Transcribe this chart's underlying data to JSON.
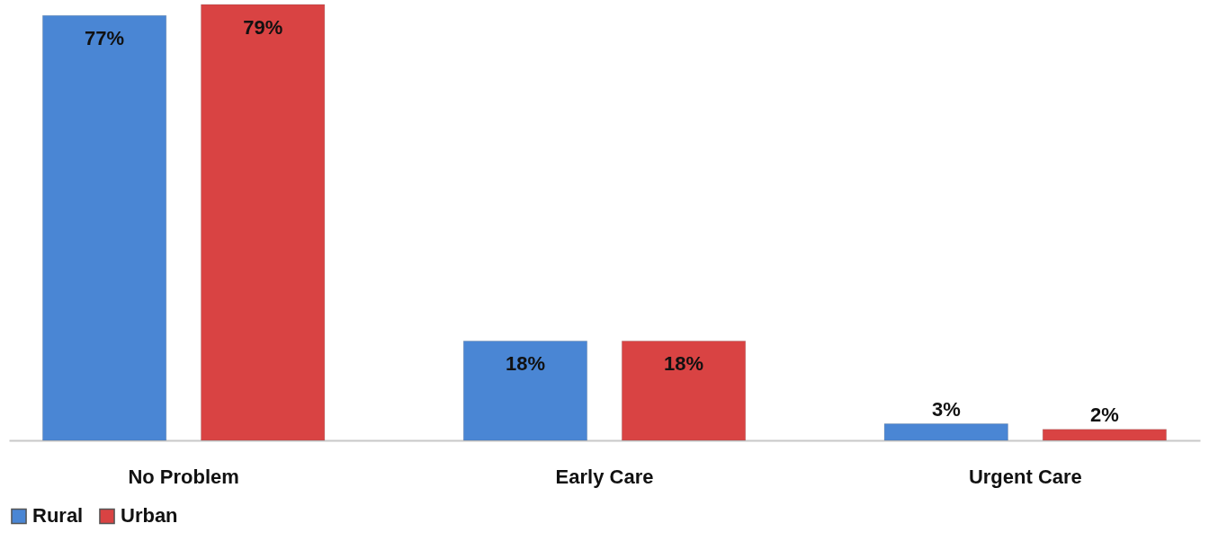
{
  "chart_data": {
    "type": "bar",
    "categories": [
      "No Problem",
      "Early Care",
      "Urgent Care"
    ],
    "series": [
      {
        "name": "Rural",
        "color": "#4a86d4",
        "values": [
          77,
          18,
          3
        ],
        "value_labels": [
          "77%",
          "18%",
          "3%"
        ]
      },
      {
        "name": "Urban",
        "color": "#d94343",
        "values": [
          79,
          18,
          2
        ],
        "value_labels": [
          "79%",
          "18%",
          "2%"
        ]
      }
    ],
    "legend": "bottom",
    "grid": false
  }
}
